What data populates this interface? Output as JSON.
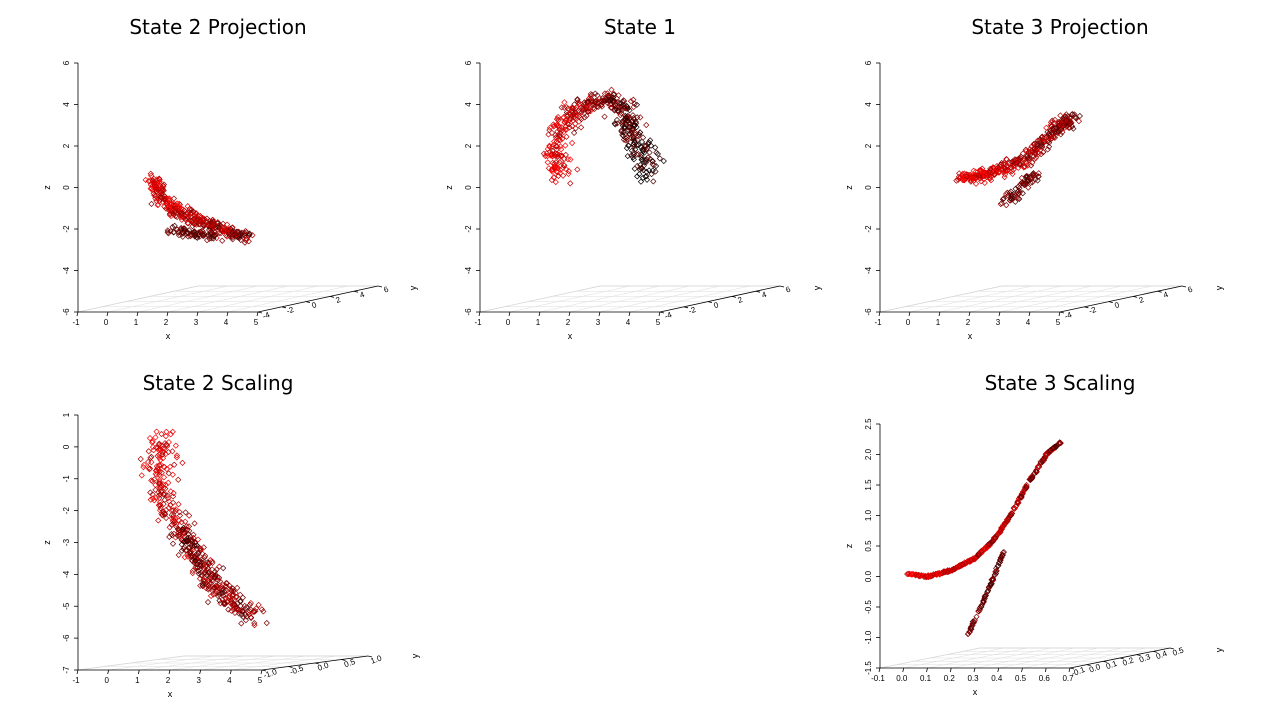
{
  "colors": {
    "point_dark": "#000000",
    "point_accent": "#ff0000",
    "background": "#ffffff"
  },
  "chart_data": [
    {
      "type": "scatter",
      "title": "State 2 Projection",
      "xlabel": "x",
      "ylabel": "y",
      "zlabel": "z",
      "x_ticks": [
        "-1",
        "0",
        "1",
        "2",
        "3",
        "4",
        "5"
      ],
      "y_ticks": [
        "-4",
        "-2",
        "0",
        "2",
        "4",
        "6"
      ],
      "z_ticks": [
        "-6",
        "-4",
        "-2",
        "0",
        "2",
        "4",
        "6"
      ],
      "xlim": [
        -1,
        5
      ],
      "zlim": [
        -6,
        6
      ],
      "curve": [
        [
          1.5,
          0.4
        ],
        [
          1.7,
          -0.3
        ],
        [
          2.2,
          -1.1
        ],
        [
          2.8,
          -1.5
        ],
        [
          3.4,
          -1.8
        ],
        [
          4.0,
          -2.1
        ],
        [
          4.7,
          -2.4
        ]
      ],
      "branch": [
        [
          2.0,
          -2.0
        ],
        [
          2.8,
          -2.2
        ],
        [
          3.5,
          -2.3
        ]
      ],
      "spread": 0.16,
      "points": 420
    },
    {
      "type": "scatter",
      "title": "State 1",
      "xlabel": "x",
      "ylabel": "y",
      "zlabel": "z",
      "x_ticks": [
        "-1",
        "0",
        "1",
        "2",
        "3",
        "4",
        "5"
      ],
      "y_ticks": [
        "-4",
        "-2",
        "0",
        "2",
        "4",
        "6"
      ],
      "z_ticks": [
        "-6",
        "-4",
        "-2",
        "0",
        "2",
        "4",
        "6"
      ],
      "xlim": [
        -1,
        5
      ],
      "zlim": [
        -6,
        6
      ],
      "curve": [
        [
          1.7,
          0.4
        ],
        [
          1.5,
          1.6
        ],
        [
          1.7,
          2.8
        ],
        [
          2.3,
          3.8
        ],
        [
          3.0,
          4.3
        ],
        [
          3.6,
          4.0
        ],
        [
          4.0,
          3.0
        ],
        [
          4.3,
          1.8
        ],
        [
          4.6,
          0.6
        ]
      ],
      "branch": [],
      "spread": 0.22,
      "points": 460
    },
    {
      "type": "scatter",
      "title": "State 3 Projection",
      "xlabel": "x",
      "ylabel": "y",
      "zlabel": "z",
      "x_ticks": [
        "-1",
        "0",
        "1",
        "2",
        "3",
        "4",
        "5"
      ],
      "y_ticks": [
        "-4",
        "-2",
        "0",
        "2",
        "4",
        "6"
      ],
      "z_ticks": [
        "-6",
        "-4",
        "-2",
        "0",
        "2",
        "4",
        "6"
      ],
      "xlim": [
        -1,
        5
      ],
      "zlim": [
        -6,
        6
      ],
      "curve": [
        [
          1.7,
          0.4
        ],
        [
          2.4,
          0.6
        ],
        [
          3.2,
          0.9
        ],
        [
          3.9,
          1.4
        ],
        [
          4.5,
          2.2
        ],
        [
          5.0,
          3.0
        ],
        [
          5.4,
          3.4
        ]
      ],
      "branch": [
        [
          3.2,
          -0.8
        ],
        [
          3.7,
          0.0
        ],
        [
          4.1,
          0.6
        ]
      ],
      "spread": 0.16,
      "points": 440
    },
    {
      "type": "scatter",
      "title": "State 2 Scaling",
      "xlabel": "x",
      "ylabel": "y",
      "zlabel": "z",
      "x_ticks": [
        "-1",
        "0",
        "1",
        "2",
        "3",
        "4",
        "5"
      ],
      "y_ticks": [
        "-1.0",
        "-0.5",
        "0.0",
        "0.5",
        "1.0"
      ],
      "z_ticks": [
        "-7",
        "-6",
        "-5",
        "-4",
        "-3",
        "-2",
        "-1",
        "0",
        "1"
      ],
      "xlim": [
        -1,
        5
      ],
      "zlim": [
        -7,
        1
      ],
      "curve": [
        [
          1.7,
          0.3
        ],
        [
          1.6,
          -0.6
        ],
        [
          1.8,
          -1.6
        ],
        [
          2.3,
          -2.6
        ],
        [
          2.9,
          -3.5
        ],
        [
          3.5,
          -4.3
        ],
        [
          4.1,
          -4.9
        ],
        [
          4.7,
          -5.4
        ]
      ],
      "branch": [
        [
          2.2,
          -2.5
        ],
        [
          3.0,
          -3.6
        ],
        [
          3.6,
          -4.8
        ]
      ],
      "spread": 0.22,
      "points": 480
    },
    {
      "type": "scatter",
      "title": "State 3 Scaling",
      "xlabel": "x",
      "ylabel": "y",
      "zlabel": "z",
      "x_ticks": [
        "-0.1",
        "0.0",
        "0.1",
        "0.2",
        "0.3",
        "0.4",
        "0.5",
        "0.6",
        "0.7"
      ],
      "y_ticks": [
        "-0.1",
        "0.0",
        "0.1",
        "0.2",
        "0.3",
        "0.4",
        "0.5"
      ],
      "z_ticks": [
        "-1.5",
        "-1.0",
        "-0.5",
        "0.0",
        "0.5",
        "1.0",
        "1.5",
        "2.0",
        "2.5"
      ],
      "xlim": [
        -0.1,
        0.7
      ],
      "zlim": [
        -1.5,
        2.5
      ],
      "curve": [
        [
          0.01,
          0.05
        ],
        [
          0.1,
          0.0
        ],
        [
          0.2,
          0.1
        ],
        [
          0.3,
          0.3
        ],
        [
          0.38,
          0.6
        ],
        [
          0.45,
          1.0
        ],
        [
          0.52,
          1.5
        ],
        [
          0.6,
          2.0
        ],
        [
          0.66,
          2.2
        ]
      ],
      "branch": [
        [
          0.27,
          -0.95
        ],
        [
          0.33,
          -0.45
        ],
        [
          0.38,
          0.0
        ],
        [
          0.42,
          0.4
        ]
      ],
      "spread": 0.018,
      "points": 480
    }
  ]
}
